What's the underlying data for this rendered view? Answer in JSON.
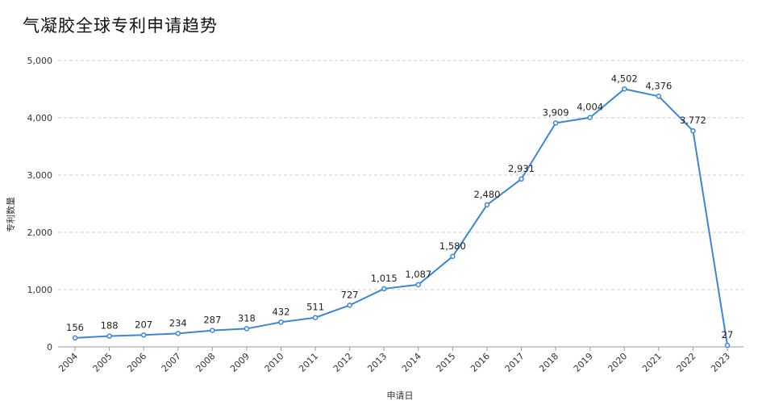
{
  "chart_data": {
    "type": "line",
    "title": "气凝胶全球专利申请趋势",
    "xlabel": "申请日",
    "ylabel": "专利数量",
    "categories": [
      "2004",
      "2005",
      "2006",
      "2007",
      "2008",
      "2009",
      "2010",
      "2011",
      "2012",
      "2013",
      "2014",
      "2015",
      "2016",
      "2017",
      "2018",
      "2019",
      "2020",
      "2021",
      "2022",
      "2023"
    ],
    "series": [
      {
        "values": [
          156,
          188,
          207,
          234,
          287,
          318,
          432,
          511,
          727,
          1015,
          1087,
          1580,
          2480,
          2931,
          3909,
          4004,
          4502,
          4376,
          3772,
          27
        ],
        "labels": [
          "156",
          "188",
          "207",
          "234",
          "287",
          "318",
          "432",
          "511",
          "727",
          "1,015",
          "1,087",
          "1,580",
          "2,480",
          "2,931",
          "3,909",
          "4,004",
          "4,502",
          "4,376",
          "3,772",
          "27"
        ]
      }
    ],
    "ylim": [
      0,
      5000
    ],
    "yticks": [
      0,
      1000,
      2000,
      3000,
      4000,
      5000
    ],
    "ytick_labels": [
      "0",
      "1,000",
      "2,000",
      "3,000",
      "4,000",
      "5,000"
    ],
    "grid": true,
    "colors": {
      "line": "#3b87d6",
      "grid": "#cccccc",
      "axis": "#999999"
    }
  }
}
